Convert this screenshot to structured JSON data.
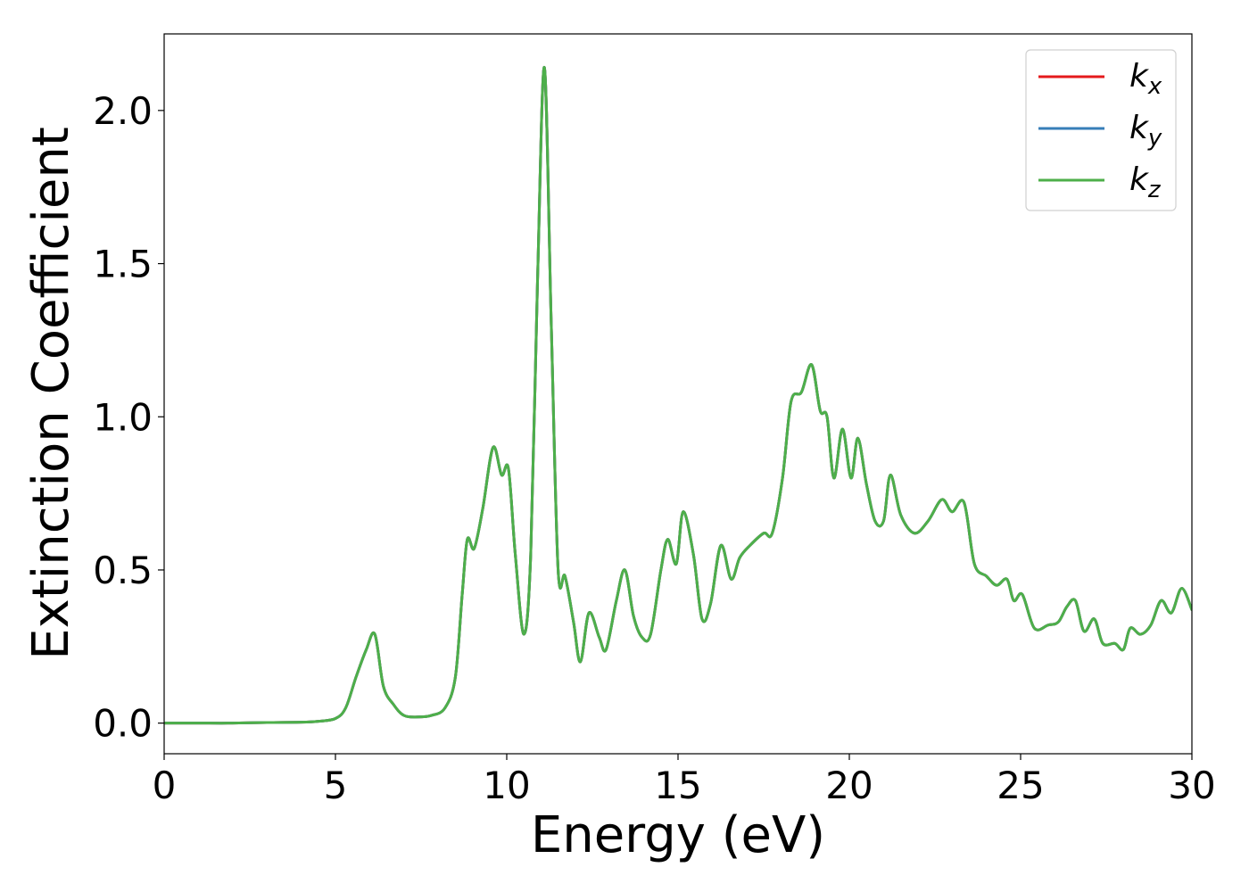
{
  "chart_data": {
    "type": "line",
    "xlabel": "Energy (eV)",
    "ylabel": "Extinction Coefficient",
    "xlim": [
      0,
      30
    ],
    "ylim": [
      -0.1,
      2.25
    ],
    "xticks": [
      0,
      5,
      10,
      15,
      20,
      25,
      30
    ],
    "yticks": [
      0.0,
      0.5,
      1.0,
      1.5,
      2.0
    ],
    "xtick_labels": [
      "0",
      "5",
      "10",
      "15",
      "20",
      "25",
      "30"
    ],
    "ytick_labels": [
      "0.0",
      "0.5",
      "1.0",
      "1.5",
      "2.0"
    ],
    "grid": false,
    "legend_position": "top-right",
    "x": [
      0,
      1,
      2,
      3,
      4,
      4.5,
      5,
      5.3,
      5.6,
      5.9,
      6.15,
      6.4,
      6.7,
      7,
      7.4,
      7.8,
      8.2,
      8.5,
      8.7,
      8.85,
      9.05,
      9.3,
      9.6,
      9.85,
      10.05,
      10.25,
      10.5,
      10.7,
      10.9,
      11.1,
      11.3,
      11.5,
      11.7,
      11.95,
      12.15,
      12.4,
      12.7,
      12.9,
      13.2,
      13.45,
      13.7,
      13.95,
      14.2,
      14.5,
      14.7,
      14.95,
      15.15,
      15.45,
      15.7,
      15.95,
      16.25,
      16.55,
      16.8,
      17.1,
      17.5,
      17.75,
      18.05,
      18.3,
      18.6,
      18.9,
      19.15,
      19.35,
      19.55,
      19.8,
      20.05,
      20.25,
      20.5,
      20.75,
      21.0,
      21.2,
      21.5,
      21.9,
      22.3,
      22.7,
      23.0,
      23.35,
      23.65,
      24.0,
      24.3,
      24.6,
      24.8,
      25.05,
      25.4,
      25.8,
      26.1,
      26.35,
      26.6,
      26.85,
      27.15,
      27.4,
      27.75,
      28.0,
      28.2,
      28.5,
      28.8,
      29.1,
      29.4,
      29.7,
      30.0
    ],
    "series": [
      {
        "name": "k_x",
        "color": "#e41a1c",
        "values": [
          0,
          0,
          0,
          0.002,
          0.003,
          0.006,
          0.015,
          0.05,
          0.15,
          0.24,
          0.29,
          0.12,
          0.06,
          0.025,
          0.02,
          0.025,
          0.05,
          0.15,
          0.42,
          0.6,
          0.57,
          0.7,
          0.9,
          0.81,
          0.83,
          0.55,
          0.29,
          0.55,
          1.45,
          2.14,
          1.3,
          0.5,
          0.48,
          0.33,
          0.2,
          0.36,
          0.28,
          0.24,
          0.4,
          0.5,
          0.35,
          0.28,
          0.29,
          0.5,
          0.6,
          0.52,
          0.69,
          0.55,
          0.34,
          0.39,
          0.58,
          0.47,
          0.54,
          0.58,
          0.62,
          0.62,
          0.8,
          1.05,
          1.08,
          1.17,
          1.02,
          1.0,
          0.8,
          0.96,
          0.8,
          0.93,
          0.78,
          0.66,
          0.66,
          0.81,
          0.68,
          0.62,
          0.66,
          0.73,
          0.69,
          0.72,
          0.52,
          0.48,
          0.45,
          0.47,
          0.4,
          0.42,
          0.31,
          0.32,
          0.33,
          0.38,
          0.4,
          0.3,
          0.34,
          0.26,
          0.26,
          0.24,
          0.31,
          0.29,
          0.32,
          0.4,
          0.36,
          0.44,
          0.37
        ]
      },
      {
        "name": "k_y",
        "color": "#377eb8",
        "values": [
          0,
          0,
          0,
          0.002,
          0.003,
          0.006,
          0.015,
          0.05,
          0.15,
          0.24,
          0.29,
          0.12,
          0.06,
          0.025,
          0.02,
          0.025,
          0.05,
          0.15,
          0.42,
          0.6,
          0.57,
          0.7,
          0.9,
          0.81,
          0.83,
          0.55,
          0.29,
          0.55,
          1.45,
          2.14,
          1.3,
          0.5,
          0.48,
          0.33,
          0.2,
          0.36,
          0.28,
          0.24,
          0.4,
          0.5,
          0.35,
          0.28,
          0.29,
          0.5,
          0.6,
          0.52,
          0.69,
          0.55,
          0.34,
          0.39,
          0.58,
          0.47,
          0.54,
          0.58,
          0.62,
          0.62,
          0.8,
          1.05,
          1.08,
          1.17,
          1.02,
          1.0,
          0.8,
          0.96,
          0.8,
          0.93,
          0.78,
          0.66,
          0.66,
          0.81,
          0.68,
          0.62,
          0.66,
          0.73,
          0.69,
          0.72,
          0.52,
          0.48,
          0.45,
          0.47,
          0.4,
          0.42,
          0.31,
          0.32,
          0.33,
          0.38,
          0.4,
          0.3,
          0.34,
          0.26,
          0.26,
          0.24,
          0.31,
          0.29,
          0.32,
          0.4,
          0.36,
          0.44,
          0.37
        ]
      },
      {
        "name": "k_z",
        "color": "#4daf4a",
        "values": [
          0,
          0,
          0,
          0.002,
          0.003,
          0.006,
          0.015,
          0.05,
          0.15,
          0.24,
          0.29,
          0.12,
          0.06,
          0.025,
          0.02,
          0.025,
          0.05,
          0.15,
          0.42,
          0.6,
          0.57,
          0.7,
          0.9,
          0.81,
          0.83,
          0.55,
          0.29,
          0.55,
          1.45,
          2.14,
          1.3,
          0.5,
          0.48,
          0.33,
          0.2,
          0.36,
          0.28,
          0.24,
          0.4,
          0.5,
          0.35,
          0.28,
          0.29,
          0.5,
          0.6,
          0.52,
          0.69,
          0.55,
          0.34,
          0.39,
          0.58,
          0.47,
          0.54,
          0.58,
          0.62,
          0.62,
          0.8,
          1.05,
          1.08,
          1.17,
          1.02,
          1.0,
          0.8,
          0.96,
          0.8,
          0.93,
          0.78,
          0.66,
          0.66,
          0.81,
          0.68,
          0.62,
          0.66,
          0.73,
          0.69,
          0.72,
          0.52,
          0.48,
          0.45,
          0.47,
          0.4,
          0.42,
          0.31,
          0.32,
          0.33,
          0.38,
          0.4,
          0.3,
          0.34,
          0.26,
          0.26,
          0.24,
          0.31,
          0.29,
          0.32,
          0.4,
          0.36,
          0.44,
          0.37
        ]
      }
    ],
    "legend": [
      {
        "base": "k",
        "sub": "x",
        "color": "#e41a1c"
      },
      {
        "base": "k",
        "sub": "y",
        "color": "#377eb8"
      },
      {
        "base": "k",
        "sub": "z",
        "color": "#4daf4a"
      }
    ]
  }
}
